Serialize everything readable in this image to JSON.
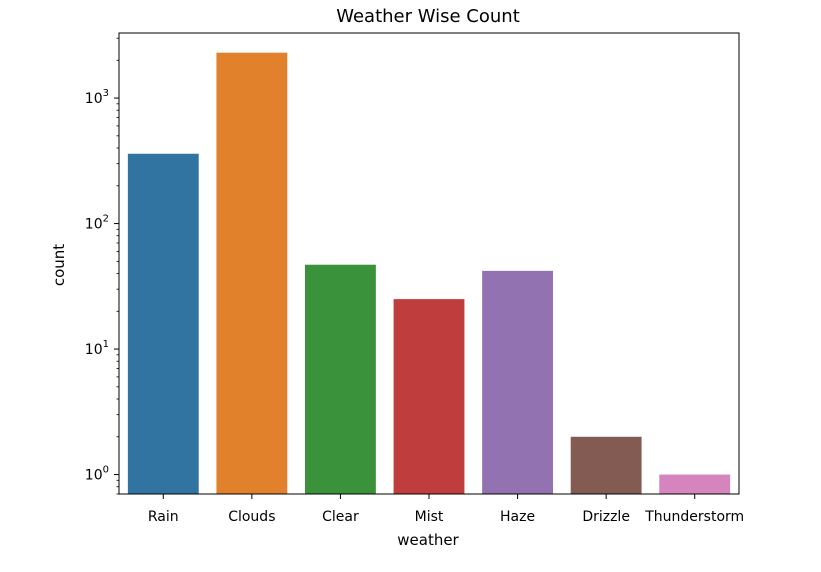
{
  "chart_data": {
    "type": "bar",
    "title": "Weather Wise Count",
    "xlabel": "weather",
    "ylabel": "count",
    "yscale": "log",
    "ylim": [
      0.7,
      3300
    ],
    "grid": false,
    "categories": [
      "Rain",
      "Clouds",
      "Clear",
      "Mist",
      "Haze",
      "Drizzle",
      "Thunderstorm"
    ],
    "values": [
      360,
      2300,
      47,
      25,
      42,
      2,
      1
    ],
    "colors": [
      "#3274a1",
      "#e1812c",
      "#3a923a",
      "#c03d3e",
      "#9372b2",
      "#845b53",
      "#d684bd"
    ],
    "y_major_ticks": [
      {
        "value": 1,
        "base": "10",
        "exp": "0"
      },
      {
        "value": 10,
        "base": "10",
        "exp": "1"
      },
      {
        "value": 100,
        "base": "10",
        "exp": "2"
      },
      {
        "value": 1000,
        "base": "10",
        "exp": "3"
      }
    ]
  }
}
